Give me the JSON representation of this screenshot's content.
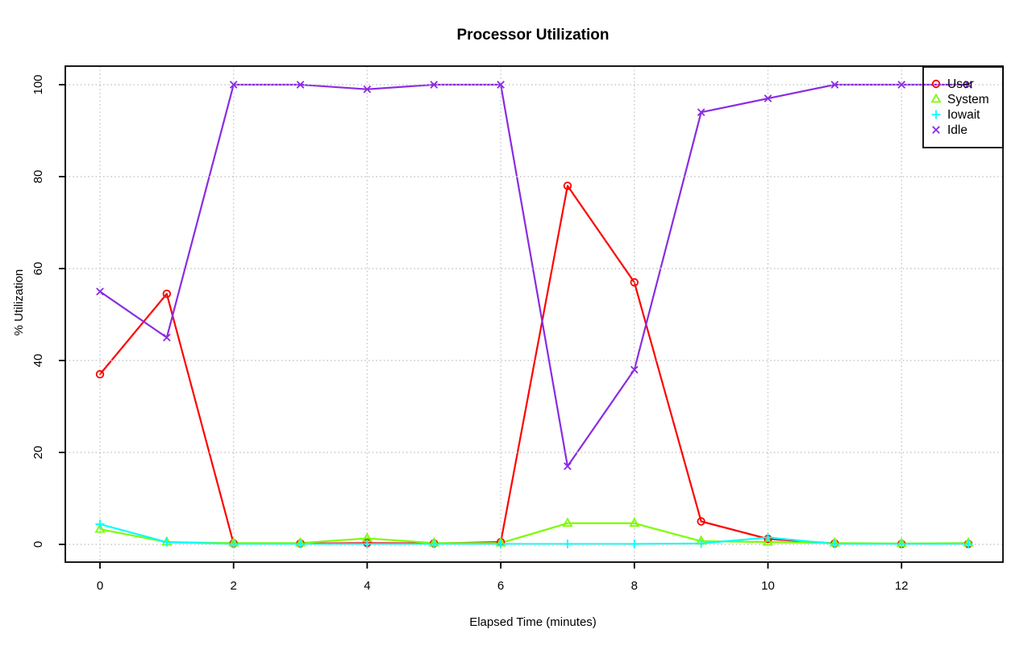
{
  "window": {
    "background": "#FFFFFF"
  },
  "chart_data": {
    "type": "line",
    "title": "Processor Utilization",
    "xlabel": "Elapsed Time (minutes)",
    "ylabel": "% Utilization",
    "x": [
      0,
      1,
      2,
      3,
      4,
      5,
      6,
      7,
      8,
      9,
      10,
      11,
      12,
      13
    ],
    "x_ticks": [
      "0",
      "2",
      "4",
      "6",
      "8",
      "10",
      "12"
    ],
    "x_tick_values": [
      0,
      2,
      4,
      6,
      8,
      10,
      12
    ],
    "y_ticks": [
      "0",
      "20",
      "40",
      "60",
      "80",
      "100"
    ],
    "y_tick_values": [
      0,
      20,
      40,
      60,
      80,
      100
    ],
    "xlim": [
      -0.52,
      13.52
    ],
    "ylim": [
      -4,
      104
    ],
    "grid": "dotted",
    "grid_color": "#C9C9C9",
    "axis_color": "#000000",
    "legend_position": "top-right",
    "series": [
      {
        "name": "User",
        "color": "#FF0000",
        "marker": "circle",
        "values": [
          37,
          54.5,
          0.2,
          0.2,
          0.3,
          0.2,
          0.5,
          78,
          57,
          5,
          1.2,
          0.2,
          0.1,
          0.1
        ]
      },
      {
        "name": "System",
        "color": "#7CFC00",
        "marker": "triangle",
        "values": [
          3.3,
          0.5,
          0.3,
          0.3,
          1.3,
          0.3,
          0.3,
          4.6,
          4.6,
          0.7,
          0.5,
          0.3,
          0.2,
          0.3
        ]
      },
      {
        "name": "Iowait",
        "color": "#00FFFF",
        "marker": "plus",
        "values": [
          4.4,
          0.5,
          0.1,
          0.1,
          0.1,
          0.1,
          0.1,
          0.1,
          0.1,
          0.2,
          1.5,
          0.1,
          0.1,
          0.1
        ]
      },
      {
        "name": "Idle",
        "color": "#8A2BE2",
        "marker": "x",
        "values": [
          55,
          45,
          100,
          100,
          99,
          100,
          100,
          17,
          38,
          94,
          97,
          100,
          100,
          100
        ]
      }
    ]
  }
}
